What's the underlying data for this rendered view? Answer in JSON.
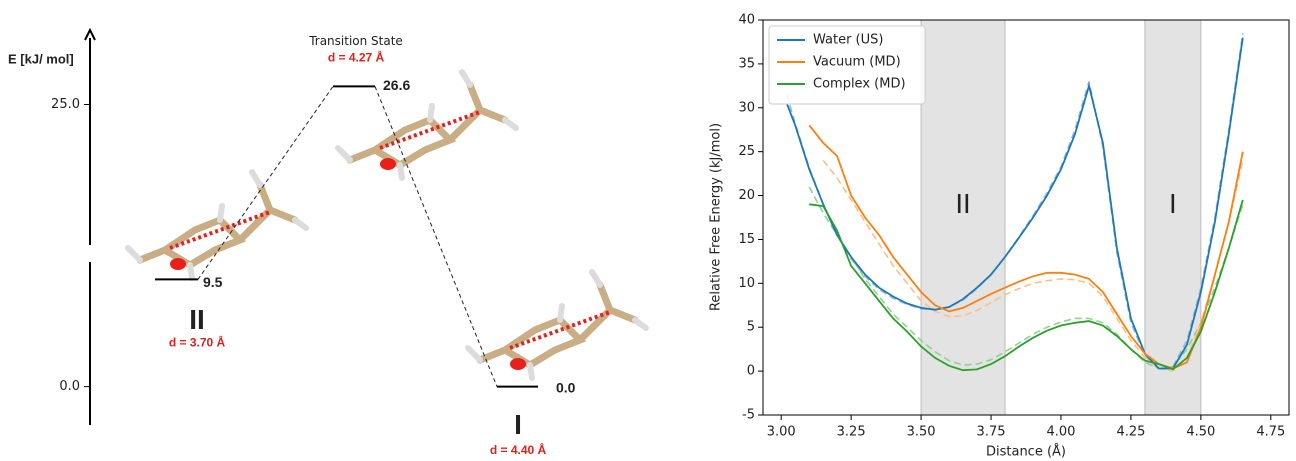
{
  "chart_data": [
    {
      "type": "energy_diagram",
      "y_label": "E [kJ/ mol]",
      "ylim": [
        -3.4,
        31.6
      ],
      "yticks": [
        {
          "value": 25,
          "label": "25.0"
        },
        {
          "value": 0,
          "label": "0.0"
        }
      ],
      "categories": [
        "II",
        "Transition State",
        "I"
      ],
      "values": [
        9.5,
        26.6,
        0
      ],
      "value_labels": [
        "9.5",
        "26.6",
        "0.0"
      ],
      "distance_labels": [
        "d = 3.70 Å",
        "d = 4.27 Å",
        "d = 4.40 Å"
      ]
    },
    {
      "type": "line",
      "x_label": "Distance (Å)",
      "y_label": "Relative Free Energy (kJ/mol)",
      "xlim": [
        2.935,
        4.815
      ],
      "ylim": [
        -5,
        40
      ],
      "xticks": [
        {
          "value": 3,
          "label": "3.00"
        },
        {
          "value": 3.25,
          "label": "3.25"
        },
        {
          "value": 3.5,
          "label": "3.50"
        },
        {
          "value": 3.75,
          "label": "3.75"
        },
        {
          "value": 4,
          "label": "4.00"
        },
        {
          "value": 4.25,
          "label": "4.25"
        },
        {
          "value": 4.5,
          "label": "4.50"
        },
        {
          "value": 4.75,
          "label": "4.75"
        }
      ],
      "yticks": [
        -5,
        0,
        5,
        10,
        15,
        20,
        25,
        30,
        35,
        40
      ],
      "legend": "upper left",
      "shaded_regions": [
        {
          "range": [
            3.5,
            3.8
          ],
          "label": "II"
        },
        {
          "range": [
            4.3,
            4.5
          ],
          "label": "I"
        }
      ],
      "shade_color": "#e3e3e3",
      "x": [
        3.02,
        3.05,
        3.1,
        3.15,
        3.2,
        3.25,
        3.3,
        3.35,
        3.4,
        3.45,
        3.5,
        3.55,
        3.6,
        3.65,
        3.7,
        3.75,
        3.8,
        3.85,
        3.9,
        3.95,
        4.0,
        4.05,
        4.1,
        4.15,
        4.2,
        4.25,
        4.3,
        4.35,
        4.4,
        4.45,
        4.5,
        4.55,
        4.6,
        4.65
      ],
      "series": [
        {
          "name": "Water (US)",
          "color": "#1f77b4",
          "values": [
            30.5,
            28,
            23,
            19,
            15.5,
            13,
            11,
            9.5,
            8.5,
            7.7,
            7.2,
            7.0,
            7.3,
            8.2,
            9.5,
            11,
            13,
            15.2,
            17.5,
            20,
            23,
            27,
            32.5,
            26,
            14,
            6,
            2,
            0.3,
            0.3,
            3,
            9,
            17,
            27,
            38
          ]
        },
        {
          "name": "Vacuum (MD)",
          "color": "#ff7f0e",
          "values": [
            null,
            null,
            28,
            26,
            24.5,
            20,
            17.5,
            15.5,
            13,
            11,
            9,
            7.5,
            6.8,
            7.2,
            8,
            8.8,
            9.5,
            10.2,
            10.8,
            11.2,
            11.2,
            11,
            10.5,
            9,
            6.5,
            4,
            2,
            0.8,
            0.3,
            1,
            5,
            11,
            17,
            25
          ]
        },
        {
          "name": "Complex (MD)",
          "color": "#2ca02c",
          "values": [
            null,
            null,
            19,
            18.8,
            16,
            12,
            10,
            8,
            6,
            4.5,
            2.8,
            1.5,
            0.6,
            0.1,
            0.2,
            0.8,
            1.7,
            2.8,
            3.8,
            4.6,
            5.2,
            5.5,
            5.7,
            5.2,
            4,
            2.5,
            1.2,
            0.8,
            0.2,
            1.5,
            4.5,
            9,
            14,
            19.5
          ]
        }
      ],
      "fits": [
        {
          "color": "#8fbbd9",
          "values": [
            31.5,
            28.2,
            23.2,
            19,
            15.5,
            12.8,
            10.8,
            9.3,
            8.3,
            7.6,
            7.1,
            7.0,
            7.3,
            8.1,
            9.4,
            11,
            13,
            15.3,
            17.7,
            20.3,
            23.3,
            27.5,
            33,
            25.5,
            13.5,
            5.5,
            1.8,
            0.2,
            0.5,
            3.5,
            9.5,
            17.5,
            27.5,
            38.5
          ]
        },
        {
          "color": "#ffbf86",
          "values": [
            null,
            null,
            null,
            24,
            22,
            19.5,
            17,
            14.5,
            12,
            10,
            8,
            6.8,
            6.2,
            6.3,
            6.9,
            7.8,
            8.7,
            9.4,
            10,
            10.3,
            10.5,
            10.4,
            10,
            8.5,
            6,
            3.5,
            1.5,
            0.3,
            0,
            1.5,
            5.5,
            11,
            17,
            24
          ]
        },
        {
          "color": "#95cf95",
          "values": [
            null,
            null,
            21,
            18,
            15.5,
            13,
            10.5,
            8.5,
            6.5,
            5,
            3.5,
            2.2,
            1.2,
            0.7,
            0.8,
            1.3,
            2.2,
            3.2,
            4.2,
            5,
            5.6,
            6,
            6,
            5.5,
            4.2,
            2.5,
            1,
            0.3,
            0.5,
            2.5,
            5.5,
            9.5,
            14,
            19
          ]
        }
      ]
    }
  ]
}
